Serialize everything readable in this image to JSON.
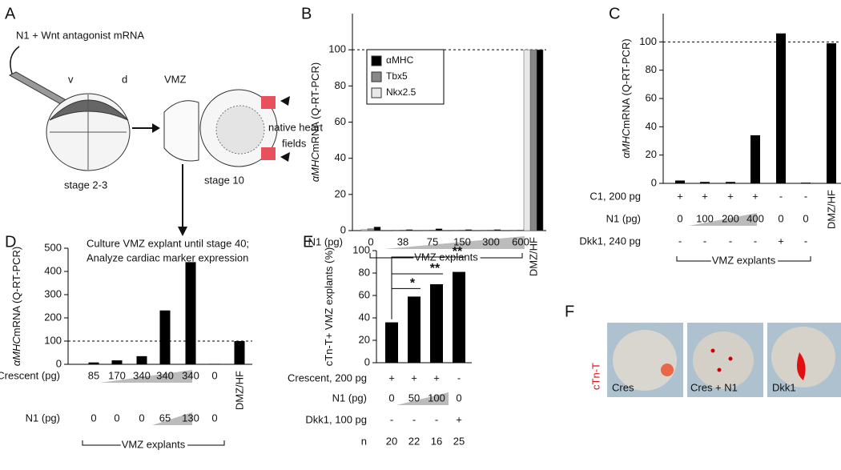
{
  "panel_labels": [
    "A",
    "B",
    "C",
    "D",
    "E",
    "F"
  ],
  "diagram": {
    "injection": "N1 + Wnt antagonist mRNA",
    "ventral": "v",
    "dorsal": "d",
    "stage_early": "stage 2-3",
    "vmz": "VMZ",
    "native_heart_1": "native heart",
    "native_heart_2": "fields",
    "stage_late": "stage 10",
    "culture_1": "Culture VMZ explant until stage 40;",
    "culture_2": "Analyze cardiac marker expression"
  },
  "photos": {
    "stain": "cTn-T",
    "labels": [
      "Cres",
      "Cres + N1",
      "Dkk1"
    ]
  },
  "chart_data": [
    {
      "type": "grouped_bar",
      "ylabel_italic": "αMHC",
      "ylabel": "mRNA (Q-RT-PCR)",
      "categories": [
        null,
        null,
        null,
        null,
        null,
        null,
        "DMZ/HF"
      ],
      "series": [
        {
          "name": "αMHC",
          "color": "#000000",
          "values": [
            2,
            0.5,
            1,
            0.5,
            0.5,
            1,
            100
          ]
        },
        {
          "name": "Tbx5",
          "color": "#888888",
          "values": [
            1,
            0.3,
            0.3,
            0.3,
            0.3,
            0.3,
            100
          ]
        },
        {
          "name": "Nkx2.5",
          "color": "#e8e8e8",
          "values": [
            0.5,
            0.3,
            0.3,
            0.3,
            0.3,
            0.3,
            100
          ]
        }
      ],
      "conditions": [
        {
          "label": "N1 (pg)",
          "values": [
            0,
            38,
            75,
            150,
            300,
            600,
            null
          ]
        }
      ],
      "group_label": "VMZ explants",
      "reference_line": 100,
      "ylim": [
        0,
        120
      ],
      "yticks": [
        0,
        20,
        40,
        60,
        80,
        100
      ]
    },
    {
      "type": "bar",
      "ylabel_italic": "αMHC",
      "ylabel": "mRNA (Q-RT-PCR)",
      "color": "#000000",
      "categories": [
        null,
        null,
        null,
        null,
        null,
        null,
        "DMZ/HF"
      ],
      "values": [
        2,
        1,
        1,
        34,
        106,
        0.5,
        99
      ],
      "conditions": [
        {
          "label": "C1, 200 pg",
          "values": [
            "+",
            "+",
            "+",
            "+",
            "-",
            "-",
            null
          ]
        },
        {
          "label": "N1 (pg)",
          "values": [
            0,
            100,
            200,
            400,
            0,
            0,
            null
          ]
        },
        {
          "label": "Dkk1, 240 pg",
          "values": [
            "-",
            "-",
            "-",
            "-",
            "+",
            "-",
            null
          ]
        }
      ],
      "group_label": "VMZ explants",
      "reference_line": 100,
      "ylim": [
        0,
        120
      ],
      "yticks": [
        0,
        20,
        40,
        60,
        80,
        100
      ]
    },
    {
      "type": "bar",
      "ylabel_italic": "αMHC",
      "ylabel": "mRNA (Q-RT-PCR)",
      "color": "#000000",
      "categories": [
        null,
        null,
        null,
        null,
        null,
        null,
        "DMZ/HF"
      ],
      "values": [
        8,
        17,
        35,
        232,
        440,
        2,
        100
      ],
      "conditions": [
        {
          "label": "Crescent (pg)",
          "values": [
            85,
            170,
            340,
            340,
            340,
            0,
            null
          ]
        },
        {
          "label": "N1 (pg)",
          "values": [
            0,
            0,
            0,
            65,
            130,
            0,
            null
          ]
        }
      ],
      "group_label": "VMZ explants",
      "reference_line": 100,
      "ylim": [
        0,
        500
      ],
      "yticks": [
        0,
        100,
        200,
        300,
        400,
        500
      ]
    },
    {
      "type": "bar",
      "ylabel": "cTn-T+ VMZ explants (%)",
      "color": "#000000",
      "categories": [
        null,
        null,
        null,
        null
      ],
      "values": [
        36,
        59,
        70,
        81
      ],
      "conditions": [
        {
          "label": "Crescent, 200 pg",
          "values": [
            "+",
            "+",
            "+",
            "-"
          ]
        },
        {
          "label": "N1 (pg)",
          "values": [
            0,
            50,
            100,
            0
          ]
        },
        {
          "label": "Dkk1, 100 pg",
          "values": [
            "-",
            "-",
            "-",
            "+"
          ]
        },
        {
          "label": "n",
          "values": [
            20,
            22,
            16,
            25
          ]
        }
      ],
      "significance": [
        "*",
        "**",
        "**"
      ],
      "ylim": [
        0,
        100
      ],
      "yticks": [
        0,
        20,
        40,
        60,
        80,
        100
      ]
    }
  ]
}
